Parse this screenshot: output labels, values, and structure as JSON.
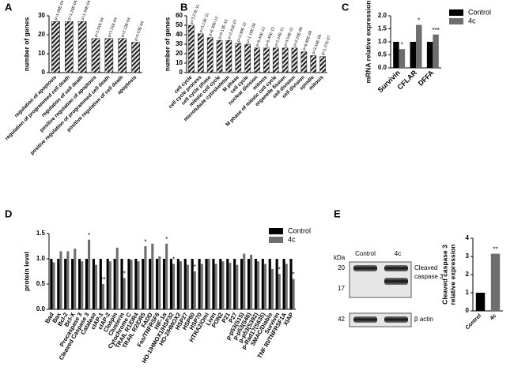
{
  "chart_data": [
    {
      "type": "bar",
      "panel": "A",
      "ylabel": "number of genes",
      "categories": [
        "regulation of apoptosis",
        "regulation of programmed cell death",
        "regulation of cell death",
        "positive regulation of apoptosis",
        "positive regulation of programmed cell death",
        "positive regulation of cell death",
        "apoptosis"
      ],
      "values": [
        27,
        27,
        27,
        18,
        18,
        18,
        16
      ],
      "annotations": [
        "p=1.08E-04",
        "p=1.26E-04",
        "p=1.34E-04",
        "p=1.01E-04",
        "p=1.51E-04",
        "p=2.13E-04",
        "p=4.53E-04"
      ],
      "color": "#222222",
      "hatch": true,
      "ylim": [
        0,
        30
      ],
      "yticks": [
        0,
        10,
        20,
        30
      ]
    },
    {
      "type": "bar",
      "panel": "B",
      "ylabel": "number of genes",
      "categories": [
        "cell cycle",
        "cell cycle process",
        "cell cycle phase",
        "mitotic cell cycle",
        "microtubule cytoskeleton",
        "M phase",
        "cell cycle",
        "nuclear division",
        "mitosis",
        "M phase of mitotic cell cycle",
        "organelle fission",
        "cell division",
        "cell division",
        "spindle",
        "mitosis"
      ],
      "values": [
        50,
        41,
        37,
        34,
        34,
        31,
        30,
        26,
        26,
        26,
        26,
        26,
        22,
        18,
        17
      ],
      "annotations": [
        "p=3.27E-11",
        "p=3.13E-11",
        "p=6.30E-12",
        "p=6.13E-13",
        "p=2.41E-07",
        "p=3.30E-12",
        "p=1.16E-08",
        "p=6.45E-12",
        "p=6.45E-12",
        "p=1.24E-11",
        "p=3.54E-11",
        "p=2.25E-08",
        "p=6.80E-08",
        "p=3.16E-06",
        "p=1.37E-07"
      ],
      "color": "#222222",
      "hatch": true,
      "ylim": [
        0,
        60
      ],
      "yticks": [
        0,
        10,
        20,
        30,
        40,
        50,
        60
      ]
    },
    {
      "type": "bar",
      "panel": "C",
      "ylabel": "mRNA relative expression",
      "categories": [
        "Survivin",
        "CFLAR",
        "DFFA"
      ],
      "series": [
        {
          "name": "Control",
          "color": "#000000",
          "values": [
            1,
            1,
            1
          ]
        },
        {
          "name": "4c",
          "color": "#6e6e6e",
          "values": [
            0.72,
            1.65,
            1.28
          ],
          "sig": [
            "*",
            "*",
            "***"
          ]
        }
      ],
      "ylim": [
        0,
        2
      ],
      "yticks": [
        {
          "value": 0,
          "label": "0.0"
        },
        0.5,
        {
          "value": 1,
          "label": "1.0"
        },
        1.5,
        {
          "value": 2,
          "label": "2.0"
        }
      ]
    },
    {
      "type": "bar",
      "panel": "D",
      "ylabel": "protein level",
      "categories": [
        "Bad",
        "Bax",
        "Bcl-2",
        "Bcl-X",
        "Procaspase 3",
        "Cleaved Caspase 3",
        "Catalase",
        "cIAP-1",
        "cIAP-2",
        "Claspin",
        "Clusterin",
        "Cytochrome C",
        "TRAIL R1/DR4",
        "TRAIL R2/DR5",
        "FADD",
        "Fas/TNFRSF6",
        "HIF-1α",
        "HO-1/HMOX1/HSP32",
        "HO-2/HMOX2",
        "HSP27",
        "HSP60",
        "HSP70",
        "HTRA2/Omi",
        "Livin",
        "PON2",
        "P21",
        "P27",
        "p-p53(S15)",
        "p-p53(S46)",
        "p-p53(S392)",
        "p-Rad17(S635)",
        "SMAC/Diablo",
        "Survivin",
        "TNF RI/TNFRSF1A",
        "XIAP"
      ],
      "series": [
        {
          "name": "Control",
          "color": "#000000",
          "values": [
            1,
            1,
            1,
            1,
            1,
            1,
            1,
            1,
            1,
            1,
            1,
            1,
            1,
            1,
            1,
            1,
            1,
            1,
            1,
            1,
            1,
            1,
            1,
            1,
            1,
            1,
            1,
            1,
            1,
            1,
            1,
            1,
            1,
            1,
            1
          ]
        },
        {
          "name": "4c",
          "color": "#6e6e6e",
          "values": [
            0.93,
            1.15,
            1.15,
            1.2,
            0.95,
            1.38,
            0.88,
            0.5,
            0.95,
            1.22,
            0.62,
            0.98,
            0.95,
            1.25,
            1.3,
            1.05,
            1.3,
            0.9,
            0.95,
            0.88,
            0.75,
            0.9,
            1.0,
            0.9,
            0.95,
            0.92,
            0.88,
            1.1,
            1.08,
            0.95,
            0.9,
            0.8,
            0.7,
            0.9,
            0.6
          ],
          "sig": [
            null,
            null,
            null,
            null,
            null,
            "*",
            null,
            "**",
            null,
            null,
            "*",
            null,
            null,
            "*",
            null,
            null,
            "*",
            "*",
            null,
            null,
            "*",
            null,
            null,
            null,
            null,
            null,
            null,
            null,
            null,
            null,
            null,
            null,
            "*",
            null,
            "*"
          ]
        }
      ],
      "ylim": [
        0,
        1.5
      ],
      "yticks": [
        {
          "value": 0,
          "label": "0.0"
        },
        0.5,
        {
          "value": 1,
          "label": "1.0"
        },
        1.5
      ]
    },
    {
      "type": "bar",
      "panel": "E",
      "ylabel": [
        "Cleaved caspase 3",
        "relative expression"
      ],
      "categories": [
        "Control",
        "4c"
      ],
      "values": [
        1,
        3.15
      ],
      "colors": [
        "#000000",
        "#6e6e6e"
      ],
      "sig": [
        null,
        "**"
      ],
      "ylim": [
        0,
        4
      ],
      "yticks": [
        0,
        1,
        2,
        3,
        4
      ]
    }
  ],
  "blot": {
    "unit": "kDa",
    "lanes": [
      "Control",
      "4c"
    ],
    "markers": [
      "20",
      "17",
      "42"
    ],
    "band_label": [
      "Cleaved",
      "caspase 3"
    ],
    "loading_label": "β actin"
  }
}
